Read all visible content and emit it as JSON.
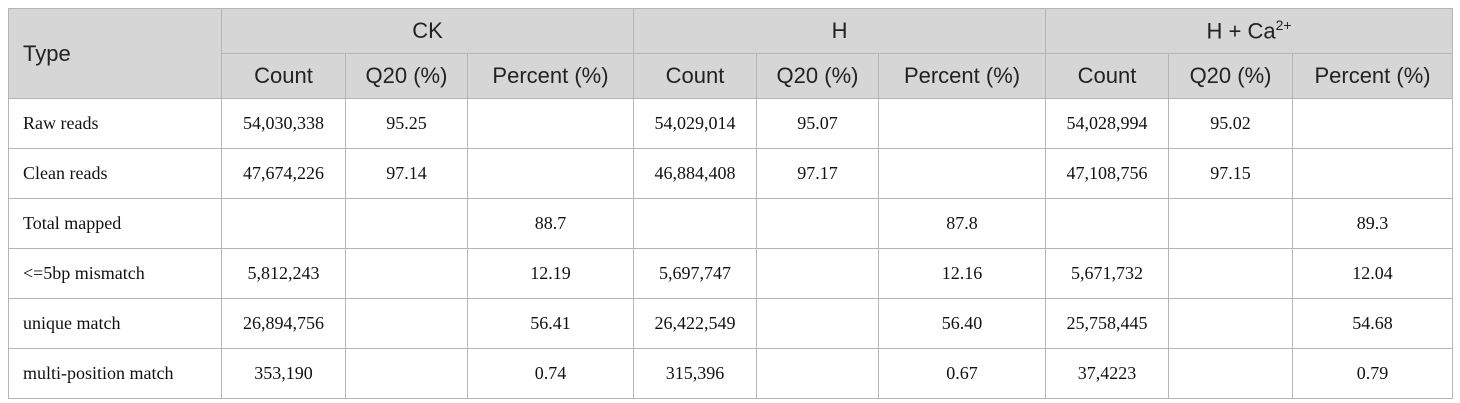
{
  "table": {
    "type_header": "Type",
    "groups": [
      {
        "label": "CK"
      },
      {
        "label": "H"
      },
      {
        "label": "H + Ca",
        "sup": "2+"
      }
    ],
    "subheaders": [
      "Count",
      "Q20 (%)",
      "Percent (%)",
      "Count",
      "Q20 (%)",
      "Percent (%)",
      "Count",
      "Q20 (%)",
      "Percent (%)"
    ],
    "rows": [
      {
        "label": "Raw reads",
        "cells": [
          "54,030,338",
          "95.25",
          null,
          "54,029,014",
          "95.07",
          null,
          "54,028,994",
          "95.02",
          null
        ]
      },
      {
        "label": "Clean reads",
        "cells": [
          "47,674,226",
          "97.14",
          null,
          "46,884,408",
          "97.17",
          null,
          "47,108,756",
          "97.15",
          null
        ]
      },
      {
        "label": "Total mapped",
        "cells": [
          null,
          null,
          "88.7",
          null,
          null,
          "87.8",
          null,
          null,
          "89.3"
        ]
      },
      {
        "label": "<=5bp mismatch",
        "cells": [
          "5,812,243",
          null,
          "12.19",
          "5,697,747",
          null,
          "12.16",
          "5,671,732",
          null,
          "12.04"
        ]
      },
      {
        "label": "unique match",
        "cells": [
          "26,894,756",
          null,
          "56.41",
          "26,422,549",
          null,
          "56.40",
          "25,758,445",
          null,
          "54.68"
        ]
      },
      {
        "label": "multi-position match",
        "cells": [
          "353,190",
          null,
          "0.74",
          "315,396",
          null,
          "0.67",
          "37,4223",
          null,
          "0.79"
        ]
      }
    ]
  }
}
